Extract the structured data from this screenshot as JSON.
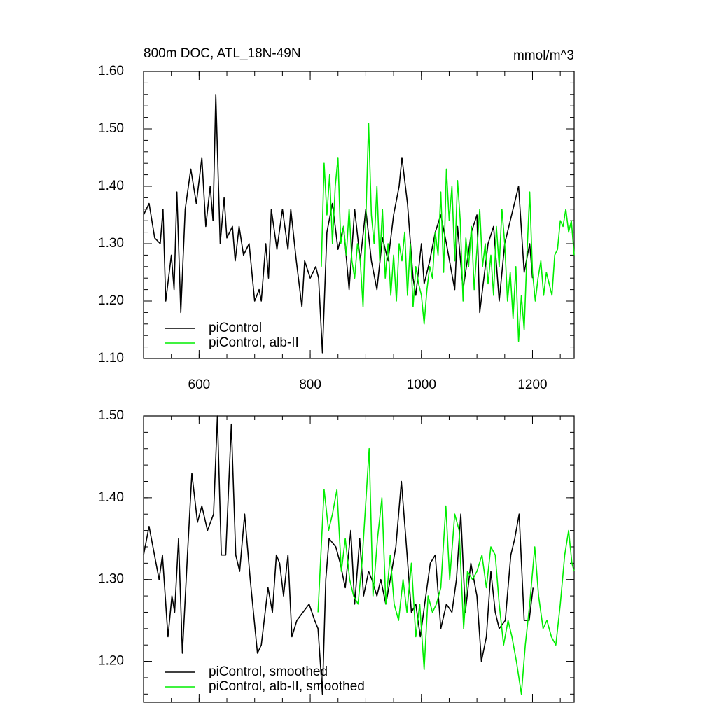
{
  "chart_data": [
    {
      "type": "line",
      "title": "800m DOC, ATL_18N-49N",
      "units": "mmol/m^3",
      "xlim": [
        500,
        1275
      ],
      "xticks": [
        600,
        800,
        1000,
        1200
      ],
      "xtick_labels": true,
      "ylim": [
        1.1,
        1.6
      ],
      "yticks": [
        {
          "value": 1.6,
          "label": "1.60"
        },
        {
          "value": 1.5,
          "label": "1.50"
        },
        {
          "value": 1.4,
          "label": "1.40"
        },
        {
          "value": 1.3,
          "label": "1.30"
        },
        {
          "value": 1.2,
          "label": "1.20"
        },
        {
          "value": 1.1,
          "label": "1.10"
        }
      ],
      "legend": "bottom-left",
      "series": [
        {
          "name": "piControl",
          "color": "#000000",
          "x": [
            500,
            510,
            520,
            530,
            535,
            540,
            550,
            555,
            560,
            567,
            575,
            585,
            595,
            605,
            612,
            620,
            625,
            630,
            638,
            645,
            650,
            660,
            665,
            672,
            680,
            690,
            700,
            708,
            712,
            720,
            725,
            730,
            740,
            750,
            760,
            765,
            775,
            785,
            790,
            800,
            810,
            815,
            822,
            830,
            840,
            850,
            860,
            870,
            880,
            890,
            900,
            910,
            920,
            930,
            940,
            950,
            960,
            965,
            975,
            985,
            990,
            1000,
            1005,
            1015,
            1025,
            1035,
            1045,
            1060,
            1065,
            1075,
            1090,
            1100,
            1105,
            1120,
            1130,
            1140,
            1150,
            1160,
            1175,
            1185,
            1195,
            1200
          ],
          "values": [
            1.35,
            1.37,
            1.31,
            1.3,
            1.36,
            1.2,
            1.28,
            1.22,
            1.39,
            1.18,
            1.36,
            1.43,
            1.37,
            1.45,
            1.33,
            1.4,
            1.34,
            1.56,
            1.3,
            1.38,
            1.31,
            1.33,
            1.27,
            1.33,
            1.28,
            1.3,
            1.2,
            1.22,
            1.2,
            1.3,
            1.24,
            1.36,
            1.29,
            1.36,
            1.29,
            1.36,
            1.27,
            1.19,
            1.27,
            1.24,
            1.26,
            1.24,
            1.11,
            1.32,
            1.37,
            1.29,
            1.33,
            1.22,
            1.36,
            1.27,
            1.36,
            1.27,
            1.22,
            1.31,
            1.27,
            1.35,
            1.4,
            1.45,
            1.37,
            1.24,
            1.21,
            1.3,
            1.23,
            1.27,
            1.32,
            1.35,
            1.3,
            1.22,
            1.33,
            1.22,
            1.32,
            1.35,
            1.18,
            1.3,
            1.33,
            1.2,
            1.3,
            1.34,
            1.4,
            1.25,
            1.3,
            1.24
          ]
        },
        {
          "name": "piControl, alb-II",
          "color": "#00ee00",
          "x": [
            820,
            825,
            830,
            835,
            840,
            845,
            850,
            855,
            860,
            865,
            870,
            875,
            880,
            885,
            890,
            895,
            900,
            905,
            910,
            915,
            920,
            925,
            930,
            935,
            940,
            945,
            950,
            955,
            960,
            965,
            970,
            975,
            980,
            985,
            990,
            995,
            1000,
            1005,
            1010,
            1015,
            1020,
            1025,
            1030,
            1035,
            1040,
            1045,
            1050,
            1055,
            1060,
            1065,
            1070,
            1075,
            1080,
            1085,
            1090,
            1095,
            1100,
            1105,
            1110,
            1115,
            1120,
            1125,
            1130,
            1135,
            1140,
            1145,
            1150,
            1155,
            1160,
            1165,
            1170,
            1175,
            1180,
            1185,
            1190,
            1195,
            1200,
            1205,
            1210,
            1215,
            1220,
            1225,
            1230,
            1235,
            1240,
            1245,
            1250,
            1255,
            1260,
            1265,
            1270,
            1275
          ],
          "values": [
            1.26,
            1.44,
            1.35,
            1.42,
            1.3,
            1.4,
            1.45,
            1.3,
            1.33,
            1.28,
            1.36,
            1.27,
            1.24,
            1.3,
            1.27,
            1.19,
            1.34,
            1.51,
            1.35,
            1.3,
            1.4,
            1.27,
            1.36,
            1.24,
            1.3,
            1.21,
            1.28,
            1.2,
            1.3,
            1.27,
            1.32,
            1.21,
            1.3,
            1.19,
            1.26,
            1.23,
            1.21,
            1.16,
            1.22,
            1.26,
            1.24,
            1.32,
            1.28,
            1.39,
            1.25,
            1.43,
            1.34,
            1.4,
            1.27,
            1.41,
            1.34,
            1.2,
            1.31,
            1.26,
            1.33,
            1.22,
            1.29,
            1.36,
            1.26,
            1.3,
            1.23,
            1.28,
            1.21,
            1.33,
            1.26,
            1.36,
            1.3,
            1.2,
            1.25,
            1.17,
            1.26,
            1.13,
            1.21,
            1.15,
            1.28,
            1.39,
            1.25,
            1.2,
            1.24,
            1.27,
            1.21,
            1.25,
            1.23,
            1.21,
            1.28,
            1.29,
            1.34,
            1.33,
            1.36,
            1.32,
            1.34,
            1.28
          ]
        }
      ]
    },
    {
      "type": "line",
      "xlim": [
        500,
        1275
      ],
      "xticks": [
        600,
        800,
        1000,
        1200
      ],
      "xtick_labels": false,
      "ylim": [
        1.15,
        1.5
      ],
      "yticks": [
        {
          "value": 1.5,
          "label": "1.50"
        },
        {
          "value": 1.4,
          "label": "1.40"
        },
        {
          "value": 1.3,
          "label": "1.30"
        },
        {
          "value": 1.2,
          "label": "1.20"
        }
      ],
      "legend": "bottom-left",
      "series": [
        {
          "name": "piControl, smoothed",
          "color": "#000000",
          "x": [
            500,
            510,
            528,
            534,
            544,
            551,
            556,
            563,
            570,
            579,
            587,
            597,
            605,
            615,
            626,
            633,
            640,
            648,
            658,
            666,
            673,
            682,
            692,
            705,
            712,
            724,
            732,
            739,
            745,
            752,
            760,
            767,
            776,
            787,
            798,
            808,
            814,
            822,
            828,
            834,
            846,
            854,
            863,
            873,
            880,
            889,
            896,
            905,
            911,
            920,
            927,
            936,
            944,
            954,
            964,
            972,
            982,
            990,
            998,
            1006,
            1016,
            1025,
            1035,
            1045,
            1055,
            1063,
            1071,
            1079,
            1089,
            1100,
            1108,
            1117,
            1125,
            1133,
            1140,
            1151,
            1161,
            1168,
            1176,
            1185,
            1194,
            1201
          ],
          "values": [
            1.33,
            1.365,
            1.3,
            1.33,
            1.23,
            1.28,
            1.26,
            1.35,
            1.21,
            1.33,
            1.43,
            1.37,
            1.39,
            1.36,
            1.38,
            1.5,
            1.33,
            1.33,
            1.49,
            1.33,
            1.31,
            1.38,
            1.3,
            1.21,
            1.22,
            1.29,
            1.26,
            1.33,
            1.32,
            1.28,
            1.33,
            1.23,
            1.25,
            1.26,
            1.27,
            1.25,
            1.24,
            1.16,
            1.3,
            1.35,
            1.34,
            1.32,
            1.29,
            1.36,
            1.27,
            1.35,
            1.28,
            1.31,
            1.3,
            1.28,
            1.3,
            1.27,
            1.3,
            1.34,
            1.42,
            1.35,
            1.26,
            1.27,
            1.23,
            1.27,
            1.32,
            1.33,
            1.24,
            1.27,
            1.26,
            1.3,
            1.38,
            1.26,
            1.32,
            1.28,
            1.2,
            1.23,
            1.31,
            1.26,
            1.24,
            1.25,
            1.33,
            1.35,
            1.38,
            1.25,
            1.25,
            1.29
          ]
        },
        {
          "name": "piControl, alb-II, smoothed",
          "color": "#00ee00",
          "x": [
            814,
            825,
            833,
            840,
            848,
            856,
            863,
            871,
            878,
            886,
            893,
            906,
            913,
            921,
            929,
            936,
            944,
            951,
            959,
            967,
            974,
            982,
            990,
            997,
            1005,
            1012,
            1020,
            1027,
            1035,
            1044,
            1051,
            1060,
            1068,
            1076,
            1083,
            1092,
            1100,
            1109,
            1117,
            1125,
            1133,
            1140,
            1148,
            1156,
            1163,
            1171,
            1180,
            1187,
            1195,
            1204,
            1211,
            1219,
            1226,
            1234,
            1242,
            1250,
            1258,
            1265,
            1271,
            1275
          ],
          "values": [
            1.26,
            1.41,
            1.36,
            1.38,
            1.41,
            1.31,
            1.35,
            1.3,
            1.28,
            1.27,
            1.32,
            1.46,
            1.28,
            1.35,
            1.4,
            1.27,
            1.33,
            1.27,
            1.25,
            1.3,
            1.26,
            1.32,
            1.23,
            1.27,
            1.19,
            1.28,
            1.26,
            1.27,
            1.29,
            1.39,
            1.3,
            1.38,
            1.36,
            1.24,
            1.31,
            1.3,
            1.31,
            1.33,
            1.29,
            1.34,
            1.33,
            1.27,
            1.22,
            1.25,
            1.23,
            1.2,
            1.16,
            1.22,
            1.27,
            1.34,
            1.28,
            1.24,
            1.25,
            1.23,
            1.22,
            1.27,
            1.33,
            1.36,
            1.32,
            1.31
          ]
        }
      ]
    }
  ]
}
